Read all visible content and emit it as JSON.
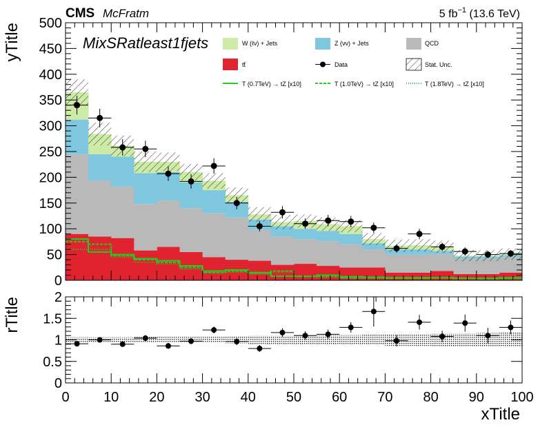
{
  "header": {
    "cms": "CMS",
    "label": "McFratm",
    "lumi_prefix": "5 fb",
    "lumi_exp": "−1",
    "lumi_suffix": " (13.6 TeV)"
  },
  "region_label": "MixSRatleast1fjets",
  "colors": {
    "wjets": "#cdeaa6",
    "zjets": "#7fc6df",
    "qcd": "#b9b9b9",
    "ttbar": "#e0242f",
    "signal": "#22cc22",
    "data": "#000000"
  },
  "legend": {
    "wjets": "W (ℓν) + Jets",
    "zjets": "Z (νν) + Jets",
    "qcd": "QCD",
    "ttbar": "tt̄",
    "data": "Data",
    "stat": "Stat. Unc.",
    "sig1": "T (0.7TeV) → tZ [x10]",
    "sig2": "T (1.0TeV) → tZ [x10]",
    "sig3": "T (1.8TeV) → tZ [x10]"
  },
  "chart_data": [
    {
      "type": "stacked-histogram",
      "ylabel": "yTitle",
      "xlim": [
        0,
        100
      ],
      "ylim": [
        0,
        500
      ],
      "yticks": [
        0,
        50,
        100,
        150,
        200,
        250,
        300,
        350,
        400,
        450,
        500
      ],
      "bin_edges": [
        0,
        5,
        10,
        15,
        20,
        25,
        30,
        35,
        40,
        45,
        50,
        55,
        60,
        65,
        70,
        75,
        80,
        85,
        90,
        95,
        100
      ],
      "stack": [
        {
          "name": "tt̄",
          "values": [
            90,
            85,
            82,
            58,
            65,
            55,
            45,
            40,
            38,
            30,
            32,
            28,
            25,
            25,
            15,
            15,
            18,
            12,
            12,
            15
          ]
        },
        {
          "name": "QCD",
          "values": [
            155,
            108,
            100,
            90,
            90,
            85,
            85,
            82,
            60,
            55,
            48,
            48,
            45,
            35,
            35,
            35,
            33,
            30,
            30,
            30
          ]
        },
        {
          "name": "Z (νν) + Jets",
          "values": [
            67,
            52,
            58,
            60,
            55,
            50,
            45,
            30,
            20,
            20,
            20,
            20,
            20,
            12,
            10,
            10,
            6,
            4,
            4,
            4
          ]
        },
        {
          "name": "W (ℓν) + Jets",
          "values": [
            53,
            39,
            21,
            22,
            20,
            20,
            18,
            13,
            10,
            8,
            15,
            13,
            15,
            8,
            7,
            8,
            8,
            2,
            2,
            2
          ]
        }
      ],
      "stat_unc": [
        25,
        22,
        20,
        20,
        18,
        16,
        15,
        15,
        14,
        14,
        13,
        13,
        12,
        12,
        12,
        12,
        12,
        11,
        11,
        11
      ],
      "data": {
        "name": "Data",
        "x": [
          2.5,
          7.5,
          12.5,
          17.5,
          22.5,
          27.5,
          32.5,
          37.5,
          42.5,
          47.5,
          52.5,
          57.5,
          62.5,
          67.5,
          72.5,
          77.5,
          82.5,
          87.5,
          92.5,
          97.5
        ],
        "y": [
          340,
          315,
          258,
          255,
          207,
          192,
          222,
          150,
          105,
          132,
          110,
          116,
          114,
          102,
          62,
          90,
          65,
          56,
          50,
          52
        ],
        "err": [
          18,
          18,
          16,
          16,
          14,
          14,
          15,
          12,
          10,
          12,
          10,
          11,
          11,
          10,
          8,
          10,
          8,
          8,
          7,
          7
        ]
      },
      "signals": [
        {
          "name": "T (0.7TeV) → tZ [x10]",
          "style": "solid",
          "values": [
            80,
            55,
            50,
            42,
            38,
            28,
            18,
            20,
            15,
            8,
            8,
            10,
            7,
            6,
            5,
            5,
            5,
            4,
            4,
            5
          ]
        },
        {
          "name": "T (1.0TeV) → tZ [x10]",
          "style": "dashed",
          "values": [
            75,
            70,
            48,
            40,
            35,
            25,
            15,
            18,
            14,
            18,
            8,
            8,
            5,
            5,
            4,
            4,
            5,
            4,
            3,
            4
          ]
        },
        {
          "name": "T (1.8TeV) → tZ [x10]",
          "style": "dotted",
          "values": [
            60,
            60,
            45,
            35,
            32,
            22,
            15,
            16,
            12,
            16,
            7,
            6,
            4,
            4,
            4,
            4,
            4,
            3,
            3,
            3
          ]
        }
      ]
    },
    {
      "type": "scatter",
      "xlabel": "xTitle",
      "ylabel": "rTitle",
      "xlim": [
        0,
        100
      ],
      "ylim": [
        0,
        2
      ],
      "xticks": [
        0,
        10,
        20,
        30,
        40,
        50,
        60,
        70,
        80,
        90,
        100
      ],
      "yticks": [
        0,
        0.5,
        1,
        1.5,
        2
      ],
      "x": [
        2.5,
        7.5,
        12.5,
        17.5,
        22.5,
        27.5,
        32.5,
        37.5,
        42.5,
        47.5,
        52.5,
        57.5,
        62.5,
        67.5,
        72.5,
        77.5,
        82.5,
        87.5,
        92.5,
        97.5
      ],
      "y": [
        0.91,
        1.0,
        0.9,
        1.04,
        0.86,
        0.97,
        1.23,
        0.96,
        0.8,
        1.17,
        1.1,
        1.13,
        1.29,
        1.66,
        0.98,
        1.41,
        1.08,
        1.39,
        1.1,
        1.29
      ],
      "err": [
        0.05,
        0.06,
        0.06,
        0.07,
        0.07,
        0.07,
        0.08,
        0.08,
        0.08,
        0.1,
        0.1,
        0.11,
        0.12,
        0.35,
        0.13,
        0.17,
        0.13,
        0.2,
        0.18,
        0.16
      ],
      "band_halfwidth": [
        0.06,
        0.06,
        0.06,
        0.07,
        0.07,
        0.07,
        0.07,
        0.08,
        0.1,
        0.1,
        0.11,
        0.11,
        0.11,
        0.12,
        0.14,
        0.14,
        0.15,
        0.15,
        0.16,
        0.17
      ]
    }
  ]
}
